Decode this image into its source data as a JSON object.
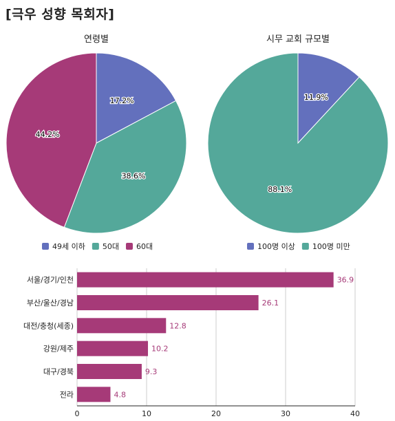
{
  "page_title": "[극우 성향 목회자]",
  "chart_data": [
    {
      "type": "pie",
      "title": "연령별",
      "series": [
        {
          "name": "49세 이하",
          "value": 17.2,
          "label": "17.2%",
          "color": "#6370bd"
        },
        {
          "name": "50대",
          "value": 38.6,
          "label": "38.6%",
          "color": "#54a89a"
        },
        {
          "name": "60대",
          "value": 44.2,
          "label": "44.2%",
          "color": "#a63a78"
        }
      ]
    },
    {
      "type": "pie",
      "title": "시무 교회 규모별",
      "series": [
        {
          "name": "100명 이상",
          "value": 11.9,
          "label": "11.9%",
          "color": "#6370bd"
        },
        {
          "name": "100명 미만",
          "value": 88.1,
          "label": "88.1%",
          "color": "#54a89a"
        }
      ]
    },
    {
      "type": "bar",
      "orientation": "horizontal",
      "categories": [
        "서울/경기/인천",
        "부산/울산/경남",
        "대전/충청(세종)",
        "강원/제주",
        "대구/경북",
        "전라"
      ],
      "values": [
        36.9,
        26.1,
        12.8,
        10.2,
        9.3,
        4.8
      ],
      "value_labels": [
        "36.9",
        "26.1",
        "12.8",
        "10.2",
        "9.3",
        "4.8"
      ],
      "xlim": [
        0,
        40
      ],
      "xticks": [
        "0",
        "10",
        "20",
        "30",
        "40"
      ],
      "grid": true,
      "color": "#a63a78",
      "label_color": "#a63a78"
    }
  ]
}
